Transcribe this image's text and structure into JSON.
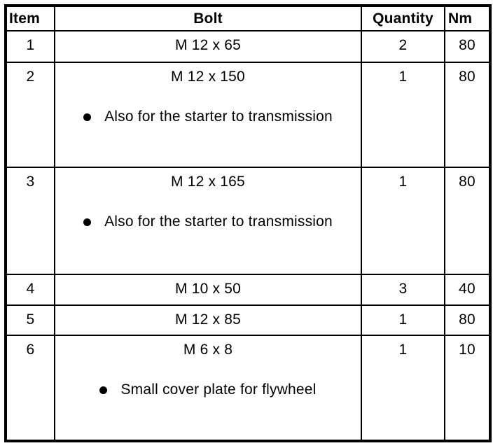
{
  "colors": {
    "background": "#ffffff",
    "border": "#000000",
    "text": "#000000"
  },
  "icons": {
    "bullet-icon": "● (filled black circle list marker)"
  },
  "table": {
    "headers": {
      "item": "Item",
      "bolt": "Bolt",
      "quantity": "Quantity",
      "nm": "Nm"
    },
    "rows": [
      {
        "item": "1",
        "bolt": "M 12 x 65",
        "note": "",
        "quantity": "2",
        "nm": "80"
      },
      {
        "item": "2",
        "bolt": "M 12 x 150",
        "note": "Also for the starter to transmission",
        "quantity": "1",
        "nm": "80"
      },
      {
        "item": "3",
        "bolt": "M 12 x 165",
        "note": "Also for the starter to transmission",
        "quantity": "1",
        "nm": "80"
      },
      {
        "item": "4",
        "bolt": "M 10 x 50",
        "note": "",
        "quantity": "3",
        "nm": "40"
      },
      {
        "item": "5",
        "bolt": "M 12 x 85",
        "note": "",
        "quantity": "1",
        "nm": "80"
      },
      {
        "item": "6",
        "bolt": "M 6 x 8",
        "note": "Small cover plate for flywheel",
        "quantity": "1",
        "nm": "10"
      }
    ]
  }
}
